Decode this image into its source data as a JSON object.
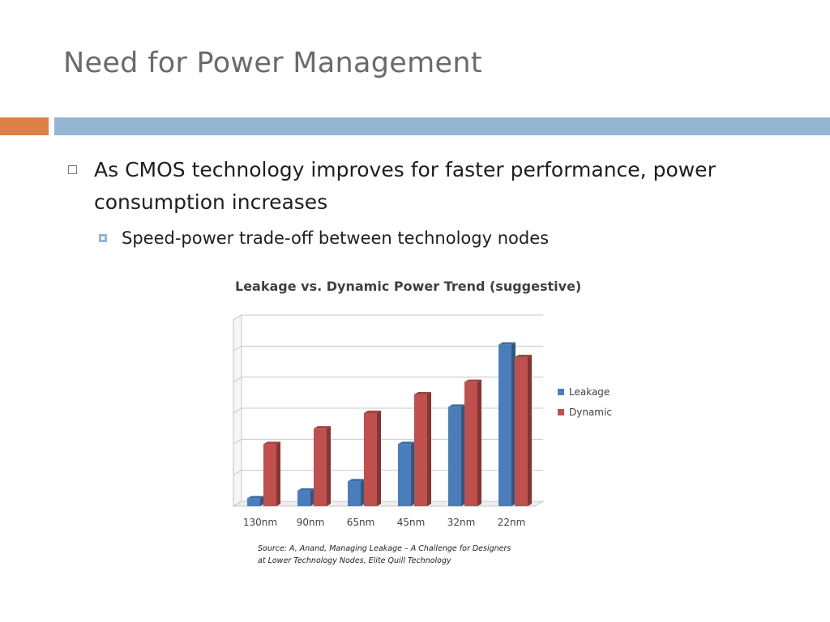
{
  "slide": {
    "title": "Need for Power Management",
    "bullets": [
      "As CMOS technology improves for faster performance, power consumption increases",
      "Speed-power trade-off between technology nodes"
    ],
    "source_line1": "Source: A, Anand, Managing Leakage – A Challenge for Designers",
    "source_line2": "at Lower Technology Nodes, Elite Quill Technology",
    "colors": {
      "accent_orange": "#dd8047",
      "accent_blue": "#94b6d2"
    }
  },
  "chart_data": {
    "type": "bar",
    "title": "Leakage vs. Dynamic Power Trend (suggestive)",
    "categories": [
      "130nm",
      "90nm",
      "65nm",
      "45nm",
      "32nm",
      "22nm"
    ],
    "series": [
      {
        "name": "Leakage",
        "color": "#4a7ebb",
        "values": [
          0.25,
          0.5,
          0.8,
          2.0,
          3.2,
          5.2
        ]
      },
      {
        "name": "Dynamic",
        "color": "#c0504d",
        "values": [
          2.0,
          2.5,
          3.0,
          3.6,
          4.0,
          4.8
        ]
      }
    ],
    "ylim": [
      0,
      6
    ],
    "grid": true,
    "legend": "right",
    "ytick_labels": false
  }
}
